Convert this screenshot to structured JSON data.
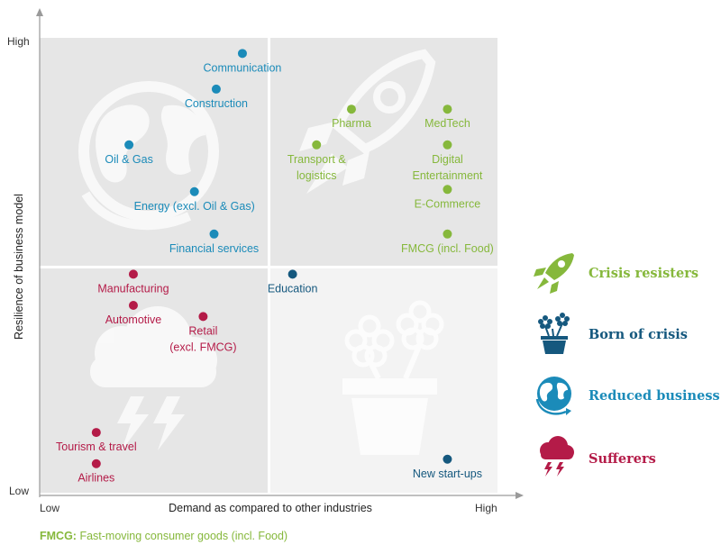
{
  "colors": {
    "resisters": "#86b83c",
    "born": "#15587e",
    "reduced": "#1b8bb9",
    "sufferers": "#b41b48",
    "quad_light": "#f3f3f3",
    "quad_dark": "#e6e6e6",
    "watermark": "#ffffff"
  },
  "chart_data": {
    "type": "scatter",
    "xlabel": "Demand as compared to other industries",
    "ylabel": "Resilience of business model",
    "x_ticks": [
      "Low",
      "High"
    ],
    "y_ticks": [
      "Low",
      "High"
    ],
    "xlim": [
      0,
      10
    ],
    "ylim": [
      0,
      10
    ],
    "grid": false,
    "legend_position": "right",
    "points": [
      {
        "label": "Communication",
        "x": 4.4,
        "y": 9.65,
        "group": "reduced"
      },
      {
        "label": "Construction",
        "x": 3.8,
        "y": 8.85,
        "group": "reduced"
      },
      {
        "label": "Oil & Gas",
        "x": 1.8,
        "y": 7.6,
        "group": "reduced"
      },
      {
        "label": "Energy (excl. Oil & Gas)",
        "x": 3.3,
        "y": 6.55,
        "group": "reduced"
      },
      {
        "label": "Financial services",
        "x": 3.75,
        "y": 5.6,
        "group": "reduced"
      },
      {
        "label": "Pharma",
        "x": 6.9,
        "y": 8.4,
        "group": "resisters"
      },
      {
        "label": "MedTech",
        "x": 9.1,
        "y": 8.4,
        "group": "resisters"
      },
      {
        "label": "Transport & logistics",
        "x": 6.1,
        "y": 7.6,
        "group": "resisters"
      },
      {
        "label": "Digital Entertainment",
        "x": 9.1,
        "y": 7.6,
        "group": "resisters"
      },
      {
        "label": "E-Commerce",
        "x": 9.1,
        "y": 6.6,
        "group": "resisters"
      },
      {
        "label": "FMCG (incl. Food)",
        "x": 9.1,
        "y": 5.6,
        "group": "resisters"
      },
      {
        "label": "Education",
        "x": 5.55,
        "y": 4.7,
        "group": "born"
      },
      {
        "label": "Manufacturing",
        "x": 1.9,
        "y": 4.7,
        "group": "sufferers"
      },
      {
        "label": "Automotive",
        "x": 1.9,
        "y": 4.0,
        "group": "sufferers"
      },
      {
        "label": "Retail (excl. FMCG)",
        "x": 3.5,
        "y": 3.75,
        "group": "sufferers"
      },
      {
        "label": "Tourism & travel",
        "x": 1.05,
        "y": 1.15,
        "group": "sufferers"
      },
      {
        "label": "Airlines",
        "x": 1.05,
        "y": 0.45,
        "group": "sufferers"
      },
      {
        "label": "New start-ups",
        "x": 9.1,
        "y": 0.55,
        "group": "born"
      }
    ]
  },
  "legend": [
    {
      "key": "resisters",
      "label": "Crisis resisters",
      "icon": "rocket-icon"
    },
    {
      "key": "born",
      "label": "Born of crisis",
      "icon": "flower-pot-icon"
    },
    {
      "key": "reduced",
      "label": "Reduced business",
      "icon": "globe-icon"
    },
    {
      "key": "sufferers",
      "label": "Sufferers",
      "icon": "storm-cloud-icon"
    }
  ],
  "footnote": {
    "abbr": "FMCG:",
    "text": " Fast-moving consumer goods (incl. Food)"
  }
}
